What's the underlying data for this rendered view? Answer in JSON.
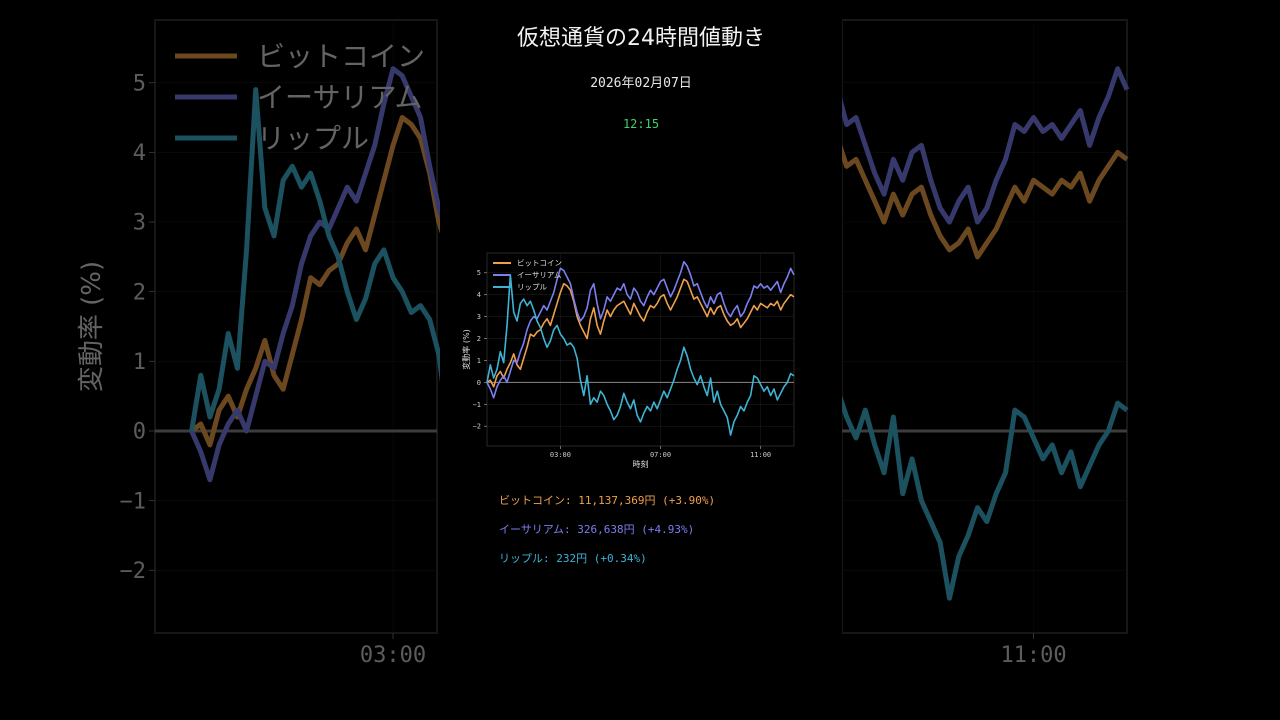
{
  "header": {
    "title": "仮想通貨の24時間値動き",
    "date": "2026年02月07日",
    "time": "12:15"
  },
  "colors": {
    "btc": "#f0a04b",
    "eth": "#7b7ff0",
    "xrp": "#3eb4d4",
    "time": "#3ad46a",
    "zero": "#888888",
    "grid": "#1c1c1c"
  },
  "prices": [
    {
      "key": "btc",
      "text": "ビットコイン: 11,137,369円 (+3.90%)"
    },
    {
      "key": "eth",
      "text": "イーサリアム: 326,638円 (+4.93%)"
    },
    {
      "key": "xrp",
      "text": "リップル: 232円 (+0.34%)"
    }
  ],
  "chart_data": {
    "type": "line",
    "ylabel": "変動率 (%)",
    "xlabel": "時刻",
    "xlim": [
      0,
      92
    ],
    "ylim": [
      -2.9,
      5.9
    ],
    "yticks": [
      -2,
      -1,
      0,
      1,
      2,
      3,
      4,
      5
    ],
    "xticks": [
      {
        "x": 22,
        "label": "03:00"
      },
      {
        "x": 52,
        "label": "07:00"
      },
      {
        "x": 82,
        "label": "11:00"
      }
    ],
    "legend": "top-left",
    "grid": true,
    "series": [
      {
        "name": "ビットコイン",
        "key": "btc",
        "values": [
          0,
          0.1,
          -0.2,
          0.3,
          0.5,
          0.2,
          0.6,
          0.9,
          1.3,
          0.8,
          0.6,
          1.1,
          1.6,
          2.2,
          2.1,
          2.3,
          2.4,
          2.7,
          2.9,
          2.6,
          3.1,
          3.6,
          4.1,
          4.5,
          4.4,
          4.2,
          3.7,
          3.0,
          2.6,
          2.3,
          2.0,
          2.9,
          3.4,
          2.6,
          2.2,
          2.8,
          3.3,
          3.0,
          3.3,
          3.5,
          3.6,
          3.7,
          3.4,
          3.1,
          3.6,
          3.3,
          3.0,
          2.8,
          3.2,
          3.5,
          3.4,
          3.6,
          3.9,
          4.0,
          3.6,
          3.3,
          3.6,
          3.9,
          4.3,
          4.7,
          4.6,
          4.2,
          3.8,
          3.9,
          3.6,
          3.3,
          3.0,
          3.4,
          3.1,
          3.4,
          3.5,
          3.1,
          2.8,
          2.6,
          2.7,
          2.9,
          2.5,
          2.7,
          2.9,
          3.2,
          3.5,
          3.3,
          3.6,
          3.5,
          3.4,
          3.6,
          3.5,
          3.7,
          3.3,
          3.6,
          3.8,
          4.0,
          3.9
        ]
      },
      {
        "name": "イーサリアム",
        "key": "eth",
        "values": [
          0,
          -0.3,
          -0.7,
          -0.2,
          0.1,
          0.3,
          0.0,
          0.5,
          1.0,
          0.9,
          1.4,
          1.8,
          2.4,
          2.8,
          3.0,
          2.9,
          3.2,
          3.5,
          3.3,
          3.7,
          4.1,
          4.7,
          5.2,
          5.1,
          4.8,
          4.5,
          3.8,
          3.2,
          2.8,
          3.0,
          3.4,
          4.2,
          4.5,
          3.6,
          2.9,
          3.3,
          3.9,
          3.7,
          4.0,
          4.3,
          4.2,
          4.5,
          4.0,
          3.8,
          4.3,
          4.1,
          3.7,
          3.5,
          3.9,
          4.2,
          4.0,
          4.3,
          4.6,
          4.7,
          4.3,
          3.9,
          4.2,
          4.6,
          5.0,
          5.5,
          5.3,
          4.9,
          4.4,
          4.5,
          4.1,
          3.7,
          3.4,
          3.9,
          3.6,
          4.0,
          4.1,
          3.6,
          3.2,
          3.0,
          3.3,
          3.5,
          3.0,
          3.2,
          3.6,
          3.9,
          4.4,
          4.3,
          4.5,
          4.3,
          4.4,
          4.2,
          4.4,
          4.6,
          4.1,
          4.5,
          4.8,
          5.2,
          4.9
        ]
      },
      {
        "name": "リップル",
        "key": "xrp",
        "values": [
          0,
          0.8,
          0.2,
          0.6,
          1.4,
          0.9,
          2.6,
          4.9,
          3.2,
          2.8,
          3.6,
          3.8,
          3.5,
          3.7,
          3.3,
          2.8,
          2.5,
          2.0,
          1.6,
          1.9,
          2.4,
          2.6,
          2.2,
          2.0,
          1.7,
          1.8,
          1.6,
          1.1,
          0.1,
          -0.6,
          0.3,
          -1.0,
          -0.7,
          -0.9,
          -0.4,
          -0.6,
          -1.0,
          -1.3,
          -1.7,
          -1.5,
          -1.1,
          -0.5,
          -0.9,
          -1.2,
          -0.8,
          -1.5,
          -1.8,
          -1.4,
          -1.1,
          -1.3,
          -0.9,
          -1.2,
          -0.8,
          -0.4,
          -0.7,
          -0.3,
          0.1,
          0.6,
          1.0,
          1.6,
          1.2,
          0.6,
          0.2,
          -0.1,
          0.3,
          -0.2,
          -0.6,
          0.2,
          -0.9,
          -0.4,
          -1.0,
          -1.3,
          -1.6,
          -2.4,
          -1.8,
          -1.5,
          -1.1,
          -1.3,
          -0.9,
          -0.6,
          0.3,
          0.2,
          -0.1,
          -0.4,
          -0.2,
          -0.6,
          -0.3,
          -0.8,
          -0.5,
          -0.2,
          0.0,
          0.4,
          0.3
        ]
      }
    ]
  }
}
